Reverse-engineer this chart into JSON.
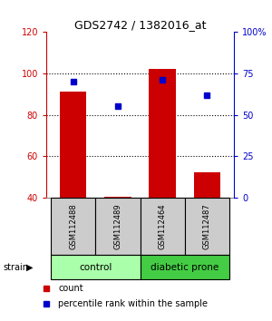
{
  "title": "GDS2742 / 1382016_at",
  "samples": [
    "GSM112488",
    "GSM112489",
    "GSM112464",
    "GSM112487"
  ],
  "counts": [
    91,
    40.5,
    102,
    52
  ],
  "percentiles": [
    70,
    55,
    71,
    62
  ],
  "ylim_left": [
    40,
    120
  ],
  "ylim_right": [
    0,
    100
  ],
  "yticks_left": [
    40,
    60,
    80,
    100,
    120
  ],
  "yticks_right": [
    0,
    25,
    50,
    75,
    100
  ],
  "ytick_labels_right": [
    "0",
    "25",
    "50",
    "75",
    "100%"
  ],
  "bar_color": "#cc0000",
  "dot_color": "#0000cc",
  "gridlines": [
    60,
    80,
    100
  ],
  "groups": [
    {
      "label": "control",
      "indices": [
        0,
        1
      ],
      "color": "#aaffaa"
    },
    {
      "label": "diabetic prone",
      "indices": [
        2,
        3
      ],
      "color": "#44cc44"
    }
  ],
  "legend_count_label": "count",
  "legend_pct_label": "percentile rank within the sample",
  "bar_width": 0.6,
  "x_positions": [
    0,
    1,
    2,
    3
  ],
  "left_tick_color": "#cc0000",
  "right_tick_color": "#0000cc",
  "bar_base": 40,
  "sample_bg_color": "#cccccc",
  "bg_color": "#ffffff"
}
